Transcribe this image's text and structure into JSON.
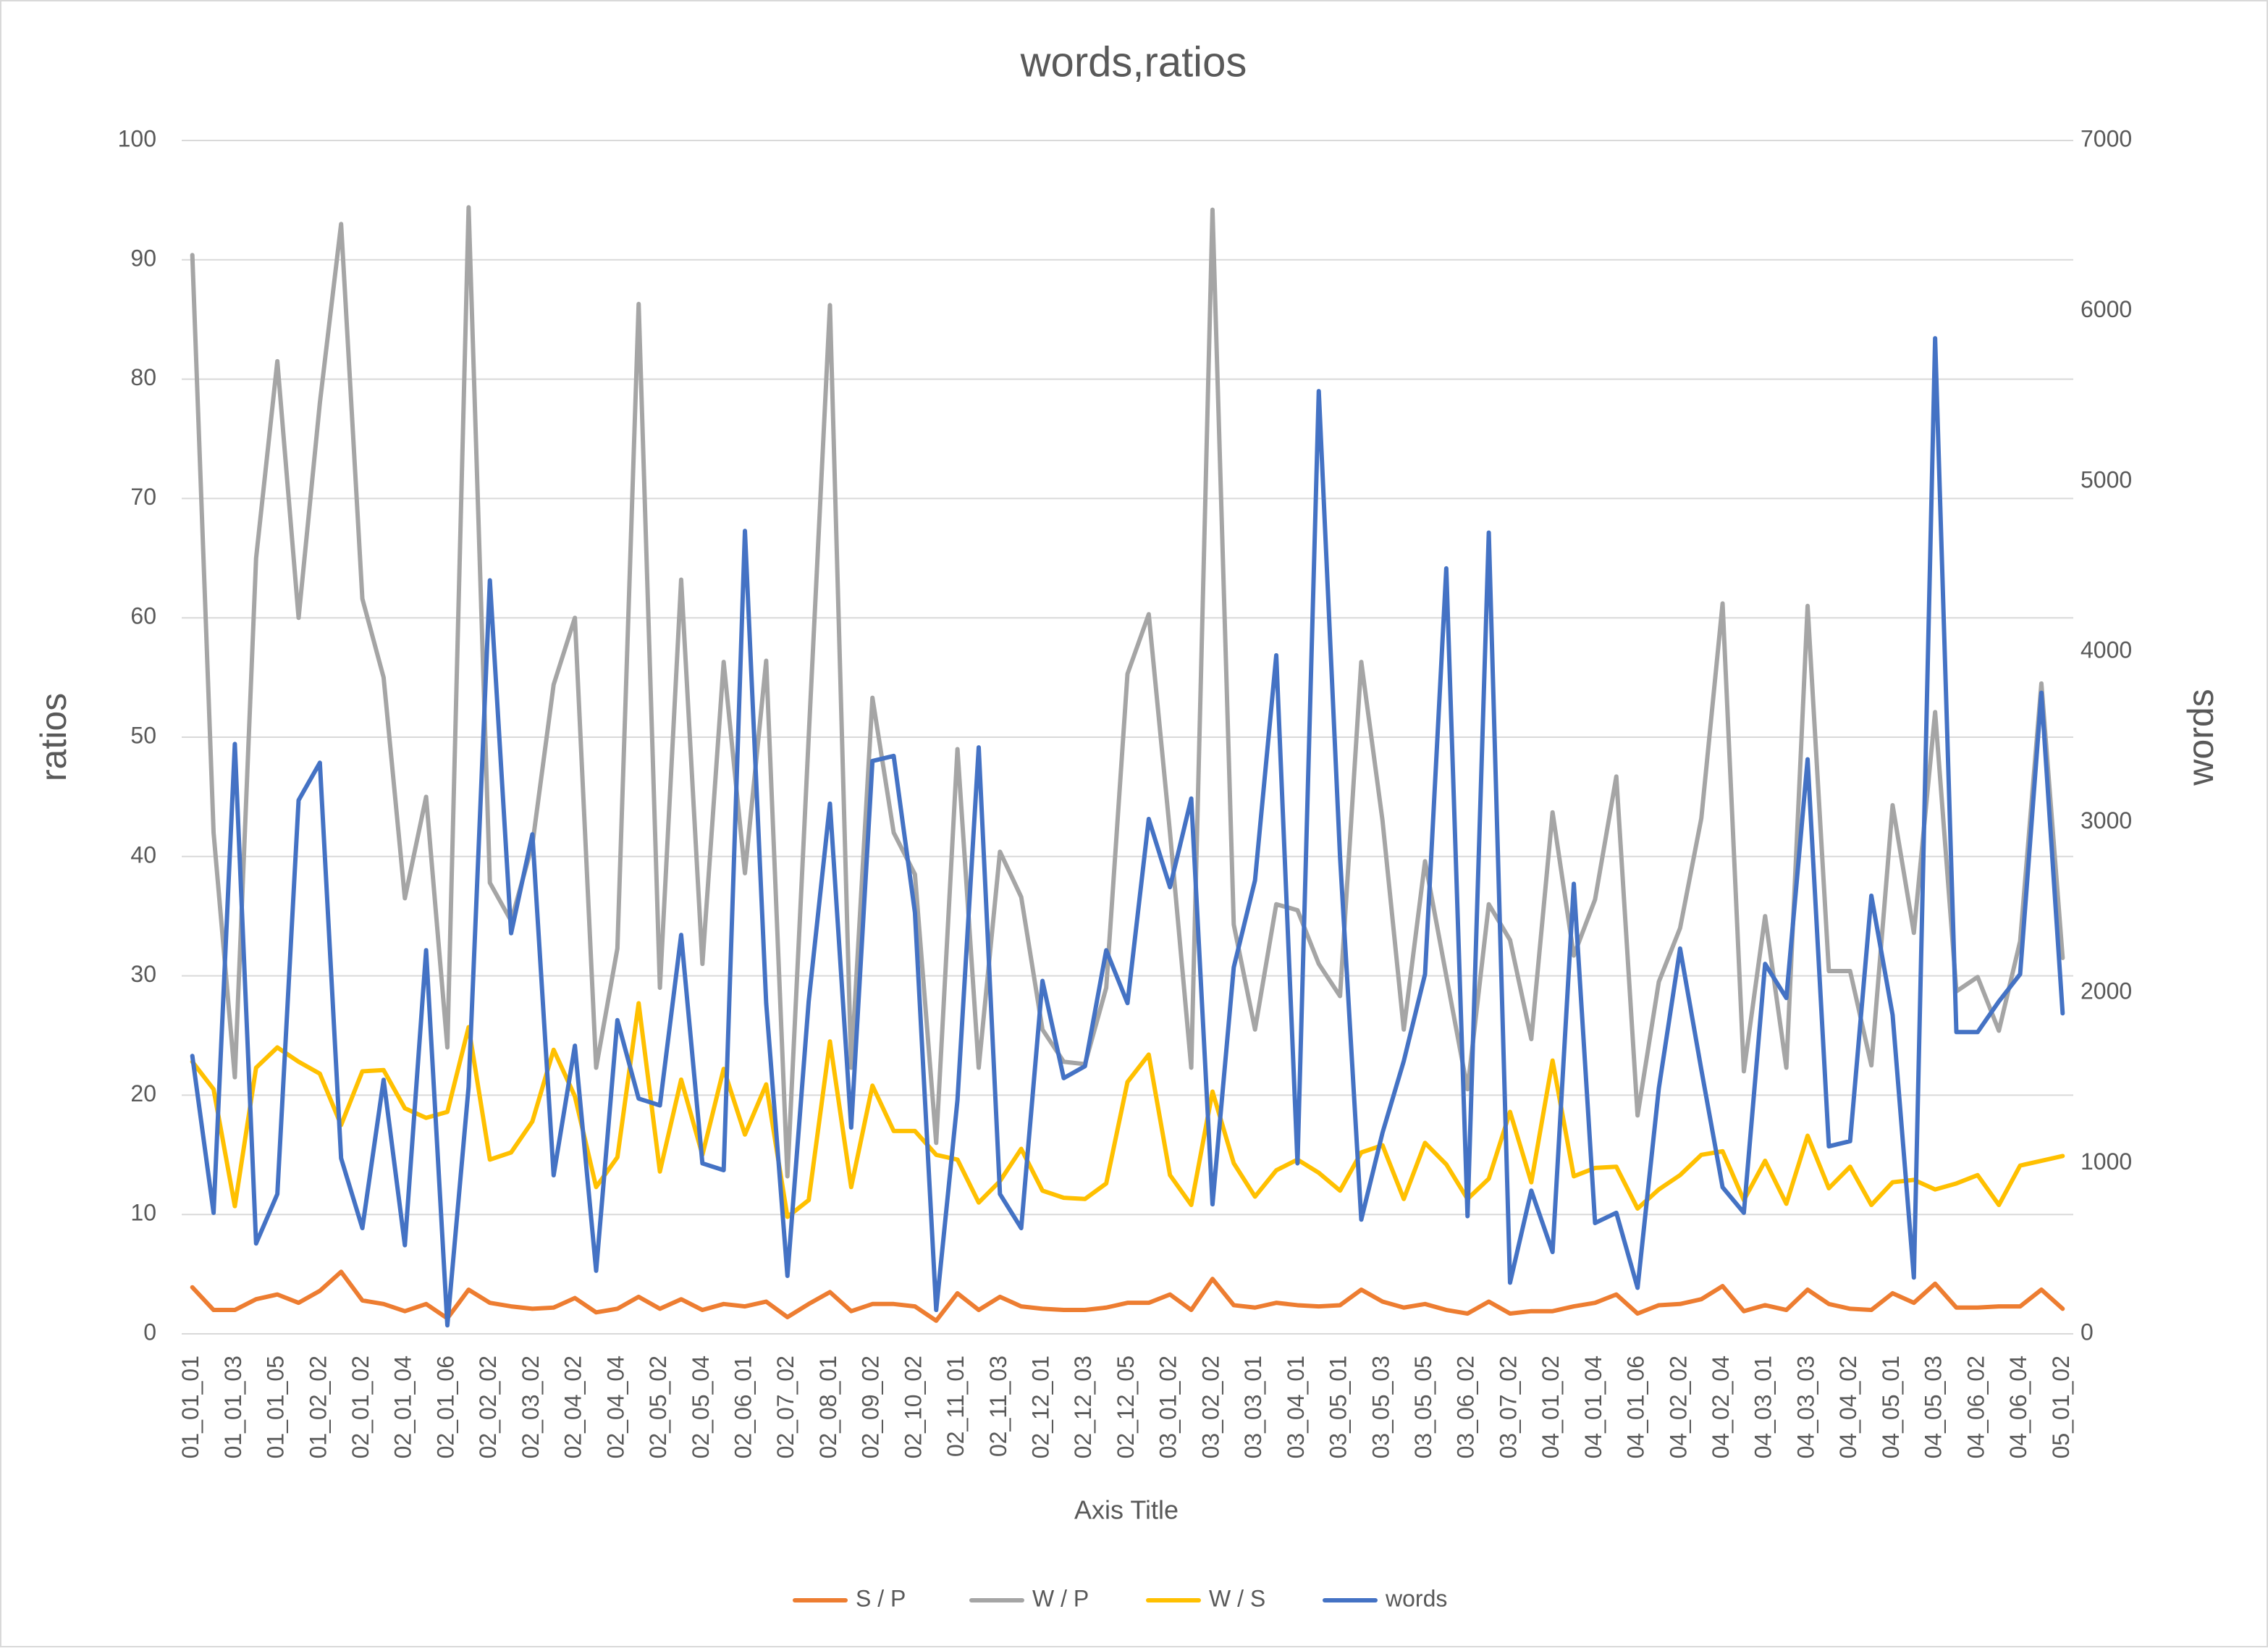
{
  "chart_data": {
    "type": "line",
    "title": "words,ratios",
    "x_label": "Axis Title",
    "y_label": "ratios",
    "y2_label": "words",
    "categories": [
      "01_01_01",
      null,
      "01_01_03",
      null,
      "01_01_05",
      null,
      "01_02_02",
      null,
      "02_01_02",
      null,
      "02_01_04",
      null,
      "02_01_06",
      null,
      "02_02_02",
      null,
      "02_03_02",
      null,
      "02_04_02",
      null,
      "02_04_04",
      null,
      "02_05_02",
      null,
      "02_05_04",
      null,
      "02_06_01",
      null,
      "02_07_02",
      null,
      "02_08_01",
      null,
      "02_09_02",
      null,
      "02_10_02",
      null,
      "02_11_01",
      null,
      "02_11_03",
      null,
      "02_12_01",
      null,
      "02_12_03",
      null,
      "02_12_05",
      null,
      "03_01_02",
      null,
      "03_02_02",
      null,
      "03_03_01",
      null,
      "03_04_01",
      null,
      "03_05_01",
      null,
      "03_05_03",
      null,
      "03_05_05",
      null,
      "03_06_02",
      null,
      "03_07_02",
      null,
      "04_01_02",
      null,
      "04_01_04",
      null,
      "04_01_06",
      null,
      "04_02_02",
      null,
      "04_02_04",
      null,
      "04_03_01",
      null,
      "04_03_03",
      null,
      "04_04_02",
      null,
      "04_05_01",
      null,
      "04_05_03",
      null,
      "04_06_02",
      null,
      "04_06_04",
      null,
      "05_01_02"
    ],
    "series": [
      {
        "name": "S / P",
        "color": "#ED7D31",
        "values": [
          3.9,
          2,
          2,
          2.9,
          3.3,
          2.6,
          3.6,
          5.2,
          2.8,
          2.5,
          1.9,
          2.5,
          1.3,
          3.7,
          2.6,
          2.3,
          2.1,
          2.2,
          3,
          1.8,
          2.1,
          3.1,
          2.1,
          2.9,
          2,
          2.5,
          2.3,
          2.7,
          1.4,
          2.5,
          3.5,
          1.9,
          2.5,
          2.5,
          2.3,
          1.1,
          3.4,
          2,
          3.1,
          2.3,
          2.1,
          2,
          2,
          2.2,
          2.6,
          2.6,
          3.3,
          2,
          4.6,
          2.4,
          2.2,
          2.6,
          2.4,
          2.3,
          2.4,
          3.7,
          2.7,
          2.2,
          2.5,
          2,
          1.7,
          2.7,
          1.7,
          1.9,
          1.9,
          2.3,
          2.6,
          3.3,
          1.7,
          2.4,
          2.5,
          2.9,
          4,
          1.9,
          2.4,
          2,
          3.7,
          2.5,
          2.1,
          2,
          3.4,
          2.6,
          4.2,
          2.2,
          2.2,
          2.3,
          2.3,
          3.7,
          2.1
        ]
      },
      {
        "name": "W / P",
        "color": "#A5A5A5",
        "values": [
          90.4,
          42,
          21.5,
          65,
          81.5,
          60,
          78,
          93,
          61.6,
          55,
          36.5,
          45,
          24,
          94.4,
          37.8,
          34.6,
          41,
          54.4,
          60,
          22.3,
          32.3,
          86.3,
          29,
          63.2,
          31,
          56.3,
          38.6,
          56.4,
          13.2,
          50,
          86.2,
          22.3,
          53.3,
          42,
          38.5,
          16,
          49,
          22.3,
          40.4,
          36.6,
          25.5,
          22.8,
          22.6,
          29,
          55.3,
          60.3,
          42,
          22.3,
          94.2,
          34.3,
          25.5,
          36,
          35.5,
          31,
          28.3,
          56.3,
          43,
          25.5,
          39.6,
          30,
          20.5,
          36,
          33,
          24.7,
          43.7,
          31.7,
          36.4,
          46.7,
          18.3,
          29.5,
          34,
          43.2,
          61.2,
          22,
          35,
          22.3,
          61,
          30.4,
          30.4,
          22.5,
          44.3,
          33.6,
          52.1,
          28.7,
          29.9,
          25.4,
          32.9,
          54.5,
          31.5
        ]
      },
      {
        "name": "W / S",
        "color": "#FFC000",
        "values": [
          22.8,
          20.5,
          10.7,
          22.3,
          24,
          22.8,
          21.8,
          17.5,
          22,
          22.1,
          18.9,
          18.1,
          18.6,
          25.7,
          14.6,
          15.2,
          17.8,
          23.8,
          19.9,
          12.3,
          14.8,
          27.7,
          13.6,
          21.3,
          15,
          22.2,
          16.7,
          20.9,
          9.8,
          11.2,
          24.5,
          12.3,
          20.8,
          17,
          17,
          15,
          14.6,
          11,
          12.8,
          15.5,
          12,
          11.4,
          11.3,
          12.6,
          21.1,
          23.4,
          13.3,
          10.8,
          20.3,
          14.3,
          11.5,
          13.7,
          14.6,
          13.5,
          12,
          15.2,
          15.8,
          11.3,
          16,
          14.2,
          11.3,
          13,
          18.6,
          12.7,
          22.9,
          13.2,
          13.9,
          14,
          10.5,
          12.1,
          13.3,
          15,
          15.3,
          11.2,
          14.5,
          10.9,
          16.6,
          12.2,
          14,
          10.8,
          12.7,
          12.9,
          12.1,
          12.6,
          13.3,
          10.8,
          14.1,
          14.5,
          14.9
        ]
      },
      {
        "name": "words",
        "color": "#4472C4",
        "axis": "y2",
        "values": [
          1630,
          710,
          3460,
          530,
          820,
          3130,
          3350,
          1030,
          620,
          1490,
          520,
          2250,
          50,
          1450,
          4420,
          2350,
          2930,
          930,
          1690,
          370,
          1840,
          1380,
          1340,
          2340,
          1000,
          960,
          4710,
          1940,
          340,
          1950,
          3110,
          1210,
          3360,
          3390,
          2470,
          140,
          1370,
          3440,
          820,
          620,
          2070,
          1500,
          1570,
          2250,
          1940,
          3020,
          2620,
          3140,
          760,
          2150,
          2660,
          3980,
          1000,
          5530,
          2800,
          670,
          1180,
          1600,
          2110,
          4490,
          690,
          4700,
          300,
          840,
          480,
          2640,
          650,
          710,
          270,
          1440,
          2260,
          1550,
          860,
          710,
          2170,
          1970,
          3370,
          1100,
          1130,
          2570,
          1870,
          330,
          5840,
          1770,
          1770,
          1950,
          2110,
          3760,
          1880
        ]
      }
    ],
    "ylim": [
      0,
      100
    ],
    "yticks": [
      0,
      10,
      20,
      30,
      40,
      50,
      60,
      70,
      80,
      90,
      100
    ],
    "y2lim": [
      0,
      7000
    ],
    "y2ticks": [
      0,
      1000,
      2000,
      3000,
      4000,
      5000,
      6000,
      7000
    ],
    "grid": true,
    "legend": "bottom"
  }
}
